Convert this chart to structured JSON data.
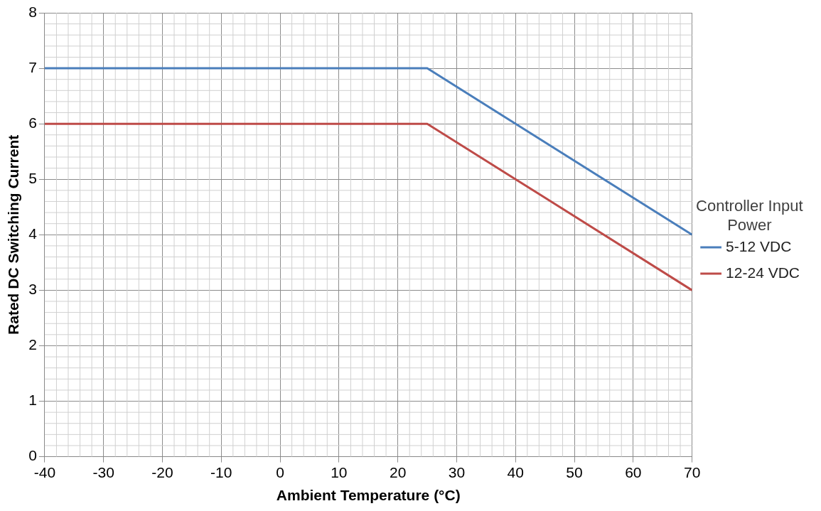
{
  "chart_data": {
    "type": "line",
    "xlabel": "Ambient Temperature (°C)",
    "ylabel": "Rated DC Switching Current",
    "legend_title": "Controller Input Power",
    "legend": "right",
    "grid": true,
    "marker": "none",
    "line_style": "solid",
    "xlim": [
      -40,
      70
    ],
    "xticks": [
      -40,
      -30,
      -20,
      -10,
      0,
      10,
      20,
      30,
      40,
      50,
      60,
      70
    ],
    "ylim": [
      0,
      8
    ],
    "yticks": [
      0,
      1,
      2,
      3,
      4,
      5,
      6,
      7,
      8
    ],
    "series": [
      {
        "name": "5-12 VDC",
        "color": "#4a7ebb",
        "x": [
          -40,
          25,
          70
        ],
        "values": [
          7,
          7,
          4
        ]
      },
      {
        "name": "12-24 VDC",
        "color": "#be4b48",
        "x": [
          -40,
          25,
          70
        ],
        "values": [
          6,
          6,
          3
        ]
      }
    ]
  }
}
